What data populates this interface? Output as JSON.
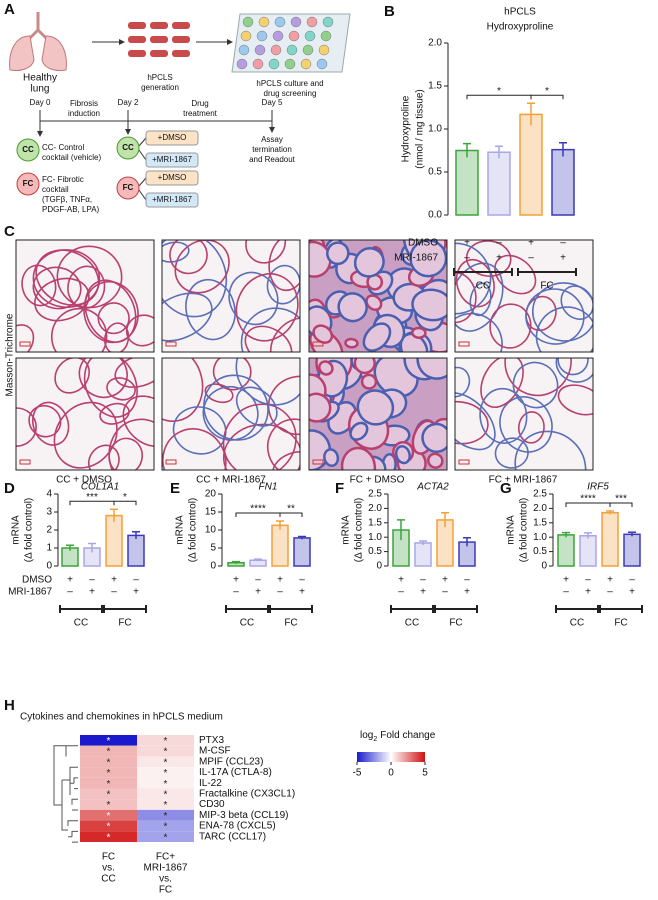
{
  "panel_labels": [
    "A",
    "B",
    "C",
    "D",
    "E",
    "F",
    "G",
    "H"
  ],
  "panel_a": {
    "steps": [
      "Healthy",
      "lung",
      "hPCLS",
      "generation",
      "hPCLS culture and",
      "drug screening"
    ],
    "timeline": [
      "Day 0",
      "Fibrosis",
      "induction",
      "Day 2",
      "Drug",
      "treatment",
      "Day 5",
      "Assay",
      "termination",
      "and Readout"
    ],
    "badges": [
      "CC",
      "FC",
      "CC",
      "FC"
    ],
    "cc_legend": [
      "CC- Control",
      "cocktail (vehicle)"
    ],
    "fc_legend": [
      "FC- Fibrotic",
      "cocktail",
      "(TGFβ, TNFα,",
      "PDGF-AB, LPA)"
    ],
    "treatments": [
      "+DMSO",
      "+MRI-1867",
      "+DMSO",
      "+MRI-1867"
    ]
  },
  "panel_c": {
    "stain": "Masson-Trichrome",
    "captions": [
      "CC + DMSO",
      "CC + MRI-1867",
      "FC + DMSO",
      "FC + MRI-1867"
    ]
  },
  "chart_data": [
    {
      "type": "bar",
      "title": "hPCLS",
      "subtitle": "Hydroxyproline",
      "ylabel": "Hydroxyproline",
      "ylabel_sub": "(nmol / mg tissue)",
      "values": [
        0.75,
        0.73,
        1.17,
        0.76
      ],
      "errors": [
        0.08,
        0.07,
        0.13,
        0.08
      ],
      "colors": [
        "#3da33a",
        "#a8a6e6",
        "#f3a03a",
        "#3a3ab8"
      ],
      "ylim": [
        0,
        2
      ],
      "yticks": [
        {
          "value": 0,
          "label": "0.0"
        },
        0.5,
        {
          "value": 1,
          "label": "1.0"
        },
        1.5,
        {
          "value": 2,
          "label": "2.0"
        }
      ],
      "annotations": [
        "*",
        "*"
      ],
      "treatment_rows": [
        {
          "label": "DMSO",
          "signs": [
            "+",
            "–",
            "+",
            "–"
          ]
        },
        {
          "label": "MRI-1867",
          "signs": [
            "–",
            "+",
            "–",
            "+"
          ]
        }
      ],
      "groups": [
        "CC",
        "FC"
      ]
    },
    {
      "type": "bar",
      "title": "COL1A1",
      "ylabel": "mRNA",
      "ylabel_sub": "(Δ fold control)",
      "values": [
        1.0,
        1.0,
        2.8,
        1.7
      ],
      "errors": [
        0.15,
        0.25,
        0.35,
        0.2
      ],
      "colors": [
        "#3da33a",
        "#a8a6e6",
        "#f3a03a",
        "#3a3ab8"
      ],
      "ylim": [
        0,
        4
      ],
      "yticks": [
        0,
        1,
        2,
        3,
        4
      ],
      "annotations": [
        "***",
        "*"
      ],
      "treatment_rows": [
        {
          "label": "DMSO",
          "signs": [
            "+",
            "–",
            "+",
            "–"
          ]
        },
        {
          "label": "MRI-1867",
          "signs": [
            "–",
            "+",
            "–",
            "+"
          ]
        }
      ],
      "groups": [
        "CC",
        "FC"
      ]
    },
    {
      "type": "bar",
      "title": "FN1",
      "ylabel": "mRNA",
      "ylabel_sub": "(Δ fold control)",
      "values": [
        0.9,
        1.6,
        11.3,
        7.8
      ],
      "errors": [
        0.3,
        0.3,
        1.2,
        0.4
      ],
      "colors": [
        "#3da33a",
        "#a8a6e6",
        "#f3a03a",
        "#3a3ab8"
      ],
      "ylim": [
        0,
        20
      ],
      "yticks": [
        0,
        5,
        10,
        15,
        20
      ],
      "annotations": [
        "****",
        "**"
      ],
      "treatment_rows": [
        {
          "signs": [
            "+",
            "–",
            "+",
            "–"
          ]
        },
        {
          "signs": [
            "–",
            "+",
            "–",
            "+"
          ]
        }
      ],
      "groups": [
        "CC",
        "FC"
      ]
    },
    {
      "type": "bar",
      "title": "ACTA2",
      "ylabel": "mRNA",
      "ylabel_sub": "(Δ fold control)",
      "values": [
        1.25,
        0.8,
        1.6,
        0.83
      ],
      "errors": [
        0.35,
        0.07,
        0.25,
        0.15
      ],
      "colors": [
        "#3da33a",
        "#a8a6e6",
        "#f3a03a",
        "#3a3ab8"
      ],
      "ylim": [
        0,
        2.5
      ],
      "yticks": [
        0,
        0.5,
        {
          "value": 1,
          "label": "1.0"
        },
        1.5,
        {
          "value": 2,
          "label": "2.0"
        },
        2.5
      ],
      "treatment_rows": [
        {
          "signs": [
            "+",
            "–",
            "+",
            "–"
          ]
        },
        {
          "signs": [
            "–",
            "+",
            "–",
            "+"
          ]
        }
      ],
      "groups": [
        "CC",
        "FC"
      ]
    },
    {
      "type": "bar",
      "title": "IRF5",
      "ylabel": "mRNA",
      "ylabel_sub": "(Δ fold control)",
      "values": [
        1.08,
        1.05,
        1.85,
        1.1
      ],
      "errors": [
        0.08,
        0.1,
        0.06,
        0.07
      ],
      "colors": [
        "#3da33a",
        "#a8a6e6",
        "#f3a03a",
        "#3a3ab8"
      ],
      "ylim": [
        0,
        2.5
      ],
      "yticks": [
        0,
        0.5,
        {
          "value": 1,
          "label": "1.0"
        },
        1.5,
        {
          "value": 2,
          "label": "2.0"
        },
        2.5
      ],
      "annotations": [
        "****",
        "***"
      ],
      "treatment_rows": [
        {
          "signs": [
            "+",
            "–",
            "+",
            "–"
          ]
        },
        {
          "signs": [
            "–",
            "+",
            "–",
            "+"
          ]
        }
      ],
      "groups": [
        "CC",
        "FC"
      ]
    },
    {
      "type": "heatmap",
      "title": "Cytokines and chemokines in hPCLS medium",
      "rows": [
        "PTX3",
        "M-CSF",
        "MPIF (CCL23)",
        "IL-17A (CTLA-8)",
        "IL-22",
        "Fractalkine (CX3CL1)",
        "CD30",
        "MIP-3 beta (CCL19)",
        "ENA-78 (CXCL5)",
        "TARC (CCL17)"
      ],
      "columns": [
        [
          "FC",
          "vs.",
          "CC"
        ],
        [
          "FC+",
          "MRI-1867",
          "vs.",
          "FC"
        ]
      ],
      "values": [
        [
          -5,
          0.8
        ],
        [
          1.5,
          0.8
        ],
        [
          1.5,
          0.5
        ],
        [
          1.5,
          0.3
        ],
        [
          1.5,
          0.3
        ],
        [
          1.3,
          0.5
        ],
        [
          1.3,
          0.5
        ],
        [
          3,
          -2.5
        ],
        [
          4,
          -2
        ],
        [
          4.5,
          -2
        ]
      ],
      "cell_labels": [
        [
          "*",
          "*"
        ],
        [
          "*",
          "*"
        ],
        [
          "*",
          "*"
        ],
        [
          "*",
          "*"
        ],
        [
          "*",
          "*"
        ],
        [
          "*",
          "*"
        ],
        [
          "*",
          "*"
        ],
        [
          "*",
          "*"
        ],
        [
          "*",
          "*"
        ],
        [
          "*",
          "*"
        ]
      ],
      "legend_title": "log",
      "legend_title_sub": "2",
      "legend_title_rest": "Fold change",
      "colors": [
        "#1a1acc",
        "#ffffff",
        "#d01010"
      ],
      "zlim": [
        -5,
        5
      ],
      "zticks": [
        -5,
        0,
        5
      ]
    }
  ]
}
